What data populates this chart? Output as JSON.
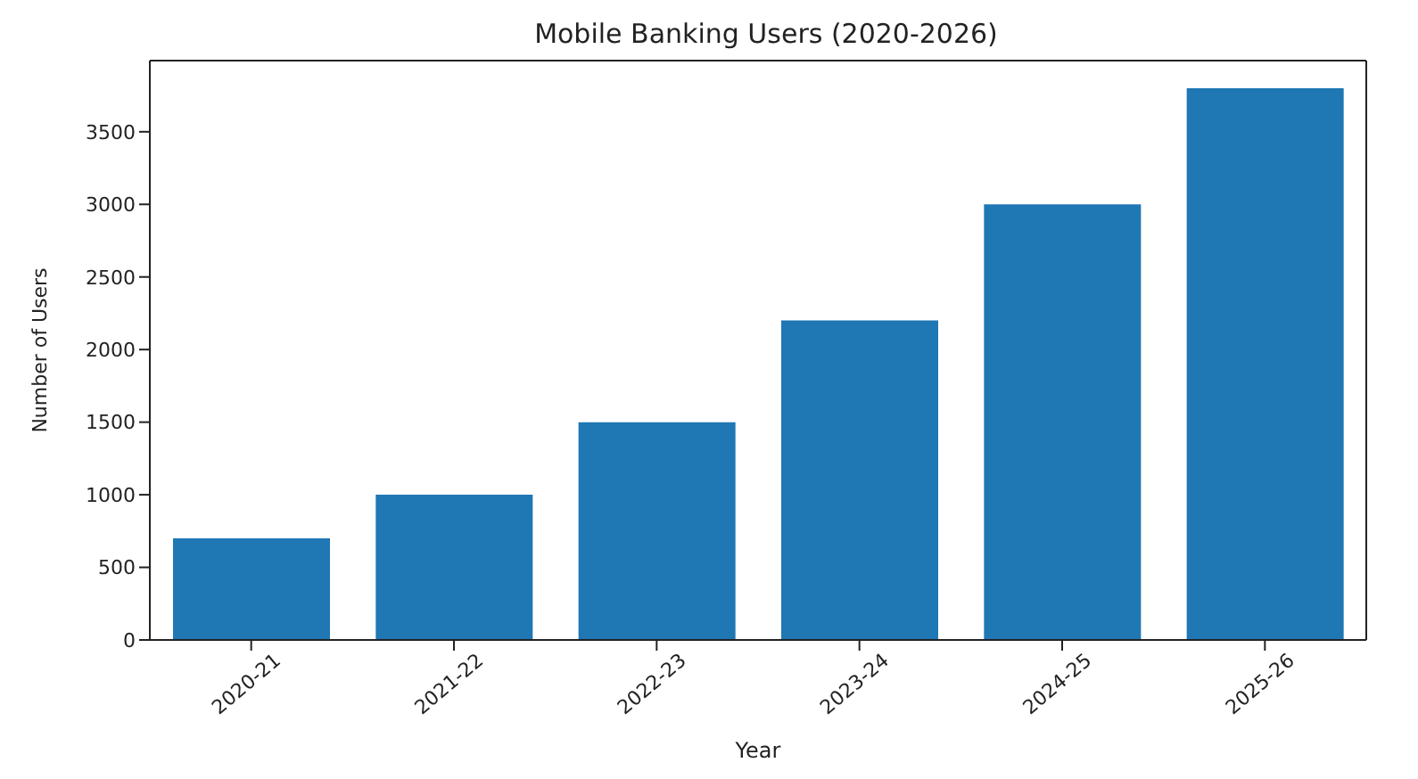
{
  "chart_data": {
    "type": "bar",
    "title": "Mobile Banking Users (2020-2026)",
    "xlabel": "Year",
    "ylabel": "Number of Users",
    "categories": [
      "2020-21",
      "2021-22",
      "2022-23",
      "2023-24",
      "2024-25",
      "2025-26"
    ],
    "values": [
      700,
      1000,
      1500,
      2200,
      3000,
      3800
    ],
    "color": "#1f77b4",
    "ylim": [
      0,
      3990
    ],
    "yticks": [
      0,
      500,
      1000,
      1500,
      2000,
      2500,
      3000,
      3500
    ],
    "grid": false
  }
}
